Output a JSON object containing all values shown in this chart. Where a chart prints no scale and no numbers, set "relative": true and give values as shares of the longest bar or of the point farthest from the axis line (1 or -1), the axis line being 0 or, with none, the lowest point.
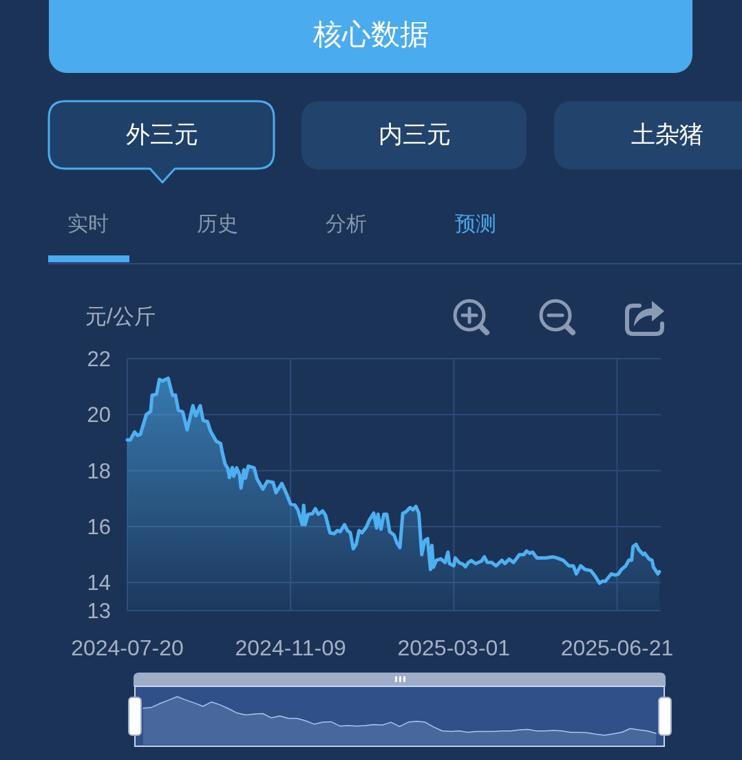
{
  "chart_data": [
    {
      "type": "area",
      "title": "核心数据",
      "ylabel": "元/公斤",
      "annotations": [
        "外三元",
        "内三元",
        "土杂猪",
        "实时",
        "历史",
        "分析",
        "预测"
      ],
      "x": [
        "2024-07-20",
        "2024-07-22",
        "2024-07-25",
        "2024-07-27",
        "2024-07-29",
        "2024-08-02",
        "2024-08-05",
        "2024-08-06",
        "2024-08-09",
        "2024-08-11",
        "2024-08-13",
        "2024-08-17",
        "2024-08-20",
        "2024-08-22",
        "2024-08-24",
        "2024-08-27",
        "2024-08-30",
        "2024-09-03",
        "2024-09-05",
        "2024-09-08",
        "2024-09-10",
        "2024-09-13",
        "2024-09-15",
        "2024-09-19",
        "2024-09-22",
        "2024-09-23",
        "2024-09-25",
        "2024-09-27",
        "2024-09-28",
        "2024-09-30",
        "2024-10-01",
        "2024-10-03",
        "2024-10-05",
        "2024-10-06",
        "2024-10-08",
        "2024-10-09",
        "2024-10-11",
        "2024-10-15",
        "2024-10-17",
        "2024-10-21",
        "2024-10-24",
        "2024-10-28",
        "2024-10-30",
        "2024-11-03",
        "2024-11-06",
        "2024-11-09",
        "2024-11-12",
        "2024-11-14",
        "2024-11-17",
        "2024-11-18",
        "2024-11-19",
        "2024-11-21",
        "2024-11-24",
        "2024-11-26",
        "2024-11-28",
        "2024-12-01",
        "2024-12-03",
        "2024-12-06",
        "2024-12-09",
        "2024-12-11",
        "2024-12-13",
        "2024-12-16",
        "2024-12-18",
        "2024-12-20",
        "2024-12-22",
        "2024-12-24",
        "2024-12-26",
        "2024-12-28",
        "2024-12-31",
        "2025-01-02",
        "2025-01-05",
        "2025-01-07",
        "2025-01-08",
        "2025-01-10",
        "2025-01-12",
        "2025-01-14",
        "2025-01-16",
        "2025-01-19",
        "2025-01-21",
        "2025-01-23",
        "2025-01-25",
        "2025-01-27",
        "2025-01-30",
        "2025-02-01",
        "2025-02-03",
        "2025-02-05",
        "2025-02-07",
        "2025-02-09",
        "2025-02-11",
        "2025-02-13",
        "2025-02-14",
        "2025-02-15",
        "2025-02-17",
        "2025-02-20",
        "2025-02-23",
        "2025-02-25",
        "2025-02-26",
        "2025-03-01",
        "2025-03-02",
        "2025-03-05",
        "2025-03-07",
        "2025-03-09",
        "2025-03-11",
        "2025-03-13",
        "2025-03-16",
        "2025-03-20",
        "2025-03-22",
        "2025-03-24",
        "2025-03-27",
        "2025-03-30",
        "2025-04-03",
        "2025-04-05",
        "2025-04-08",
        "2025-04-11",
        "2025-04-15",
        "2025-04-18",
        "2025-04-20",
        "2025-04-22",
        "2025-04-24",
        "2025-04-27",
        "2025-05-03",
        "2025-05-08",
        "2025-05-11",
        "2025-05-15",
        "2025-05-19",
        "2025-05-22",
        "2025-05-24",
        "2025-05-27",
        "2025-05-30",
        "2025-06-03",
        "2025-06-06",
        "2025-06-09",
        "2025-06-11",
        "2025-06-13",
        "2025-06-17",
        "2025-06-20",
        "2025-06-22",
        "2025-06-24",
        "2025-06-27",
        "2025-06-29",
        "2025-07-01",
        "2025-07-02",
        "2025-07-04",
        "2025-07-06",
        "2025-07-09",
        "2025-07-10",
        "2025-07-13",
        "2025-07-15",
        "2025-07-16",
        "2025-07-19",
        "2025-07-20"
      ],
      "series": [
        {
          "color": "#4db0f2",
          "values": [
            19.1,
            19.1,
            19.38,
            19.26,
            19.3,
            20.0,
            20.12,
            20.69,
            20.73,
            21.26,
            21.2,
            21.3,
            20.69,
            20.7,
            20.16,
            20.1,
            19.46,
            20.32,
            19.96,
            20.32,
            19.79,
            19.75,
            19.42,
            19.05,
            18.97,
            18.69,
            18.24,
            18.07,
            17.75,
            18.11,
            17.8,
            18.1,
            17.85,
            17.38,
            18.03,
            17.73,
            18.16,
            18.1,
            17.7,
            17.34,
            17.62,
            17.58,
            17.21,
            17.54,
            17.2,
            16.81,
            16.77,
            16.6,
            16.07,
            16.76,
            16.07,
            16.44,
            16.46,
            16.64,
            16.44,
            16.56,
            16.4,
            15.78,
            15.75,
            15.86,
            15.82,
            16.07,
            15.86,
            15.78,
            15.21,
            15.37,
            15.86,
            15.78,
            15.99,
            16.23,
            16.48,
            15.95,
            16.44,
            15.91,
            16.44,
            16.44,
            15.82,
            15.7,
            15.41,
            15.25,
            16.48,
            16.52,
            16.68,
            16.6,
            16.72,
            16.48,
            15.0,
            15.5,
            15.57,
            14.47,
            15.33,
            14.55,
            14.8,
            14.85,
            14.72,
            15.09,
            14.68,
            14.6,
            14.88,
            14.7,
            14.67,
            14.57,
            14.72,
            14.79,
            14.68,
            14.77,
            14.92,
            14.72,
            14.72,
            14.6,
            14.8,
            14.68,
            14.84,
            14.72,
            15.0,
            15.0,
            15.13,
            15.05,
            15.09,
            14.88,
            14.88,
            14.92,
            14.88,
            14.8,
            14.6,
            14.6,
            14.31,
            14.6,
            14.47,
            14.43,
            14.23,
            13.98,
            14.05,
            14.05,
            14.31,
            14.27,
            14.31,
            14.47,
            14.6,
            14.8,
            14.8,
            15.29,
            15.37,
            15.17,
            15.0,
            15.05,
            14.84,
            14.8,
            14.55,
            14.31,
            14.39
          ]
        }
      ],
      "xlim": [
        "2024-07-20",
        "2025-07-21"
      ],
      "xticks": [
        "2024-07-20",
        "2024-11-09",
        "2025-03-01",
        "2025-06-21"
      ],
      "ylim": [
        13,
        22
      ],
      "yticks": [
        13,
        14,
        16,
        18,
        20,
        22
      ],
      "grid": true
    },
    {
      "type": "area",
      "relative": true,
      "categories": [
        null,
        null,
        null,
        null,
        null,
        null,
        null,
        null,
        null,
        null,
        null,
        null,
        null,
        null,
        null,
        null,
        null,
        null,
        null,
        null,
        null,
        null,
        null,
        null,
        null,
        null,
        null,
        null,
        null,
        null,
        null,
        null,
        null,
        null,
        null,
        null,
        null,
        null,
        null,
        null,
        null,
        null,
        null,
        null,
        null,
        null,
        null,
        null,
        null,
        null,
        null,
        null,
        null,
        null,
        null,
        null,
        null,
        null,
        null,
        null,
        null
      ],
      "series": [
        {
          "color": "#a9c6f2",
          "values": [
            0.76,
            0.78,
            0.86,
            0.93,
            1.0,
            0.93,
            0.87,
            0.8,
            0.89,
            0.83,
            0.75,
            0.66,
            0.62,
            0.64,
            0.65,
            0.56,
            0.6,
            0.55,
            0.55,
            0.5,
            0.43,
            0.47,
            0.48,
            0.39,
            0.4,
            0.39,
            0.4,
            0.42,
            0.41,
            0.47,
            0.38,
            0.47,
            0.49,
            0.47,
            0.37,
            0.29,
            0.28,
            0.29,
            0.26,
            0.28,
            0.28,
            0.28,
            0.29,
            0.29,
            0.31,
            0.32,
            0.29,
            0.29,
            0.3,
            0.29,
            0.26,
            0.26,
            0.25,
            0.22,
            0.2,
            0.23,
            0.26,
            0.34,
            0.31,
            0.29,
            0.24
          ]
        }
      ]
    }
  ]
}
